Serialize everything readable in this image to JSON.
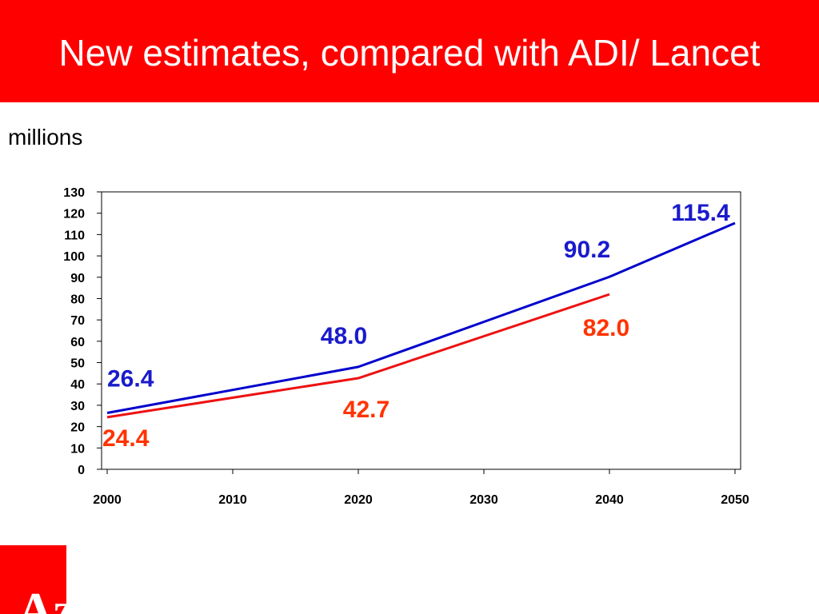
{
  "title": "New estimates, compared with ADI/ Lancet",
  "unit_label": "millions",
  "colors": {
    "title_bar": "#ff0000",
    "title_text": "#ffffff",
    "series_new": "#0000cc",
    "series_adi": "#ee1111",
    "label_new": "#1a1acc",
    "label_adi": "#ff3300"
  },
  "logo": {
    "text": "Az",
    "icon": "az-logo-icon"
  },
  "chart_data": {
    "type": "line",
    "xlim": [
      2000,
      2050
    ],
    "ylim": [
      0,
      130
    ],
    "x_ticks": [
      "2000",
      "2010",
      "2020",
      "2030",
      "2040",
      "2050"
    ],
    "y_ticks": [
      "0",
      "10",
      "20",
      "30",
      "40",
      "50",
      "60",
      "70",
      "80",
      "90",
      "100",
      "110",
      "120",
      "130"
    ],
    "grid": false,
    "legend": "none",
    "series": [
      {
        "color": "#0000cc",
        "points": [
          [
            2000,
            26.4
          ],
          [
            2020,
            48.0
          ],
          [
            2040,
            90.2
          ],
          [
            2050,
            115.4
          ]
        ]
      },
      {
        "color": "#ee1111",
        "points": [
          [
            2000,
            24.4
          ],
          [
            2020,
            42.7
          ],
          [
            2040,
            82.0
          ]
        ]
      }
    ],
    "data_labels": [
      {
        "text": "26.4",
        "series": 0,
        "point": 0
      },
      {
        "text": "48.0",
        "series": 0,
        "point": 1
      },
      {
        "text": "90.2",
        "series": 0,
        "point": 2
      },
      {
        "text": "115.4",
        "series": 0,
        "point": 3
      },
      {
        "text": "24.4",
        "series": 1,
        "point": 0
      },
      {
        "text": "42.7",
        "series": 1,
        "point": 1
      },
      {
        "text": "82.0",
        "series": 1,
        "point": 2
      }
    ]
  }
}
